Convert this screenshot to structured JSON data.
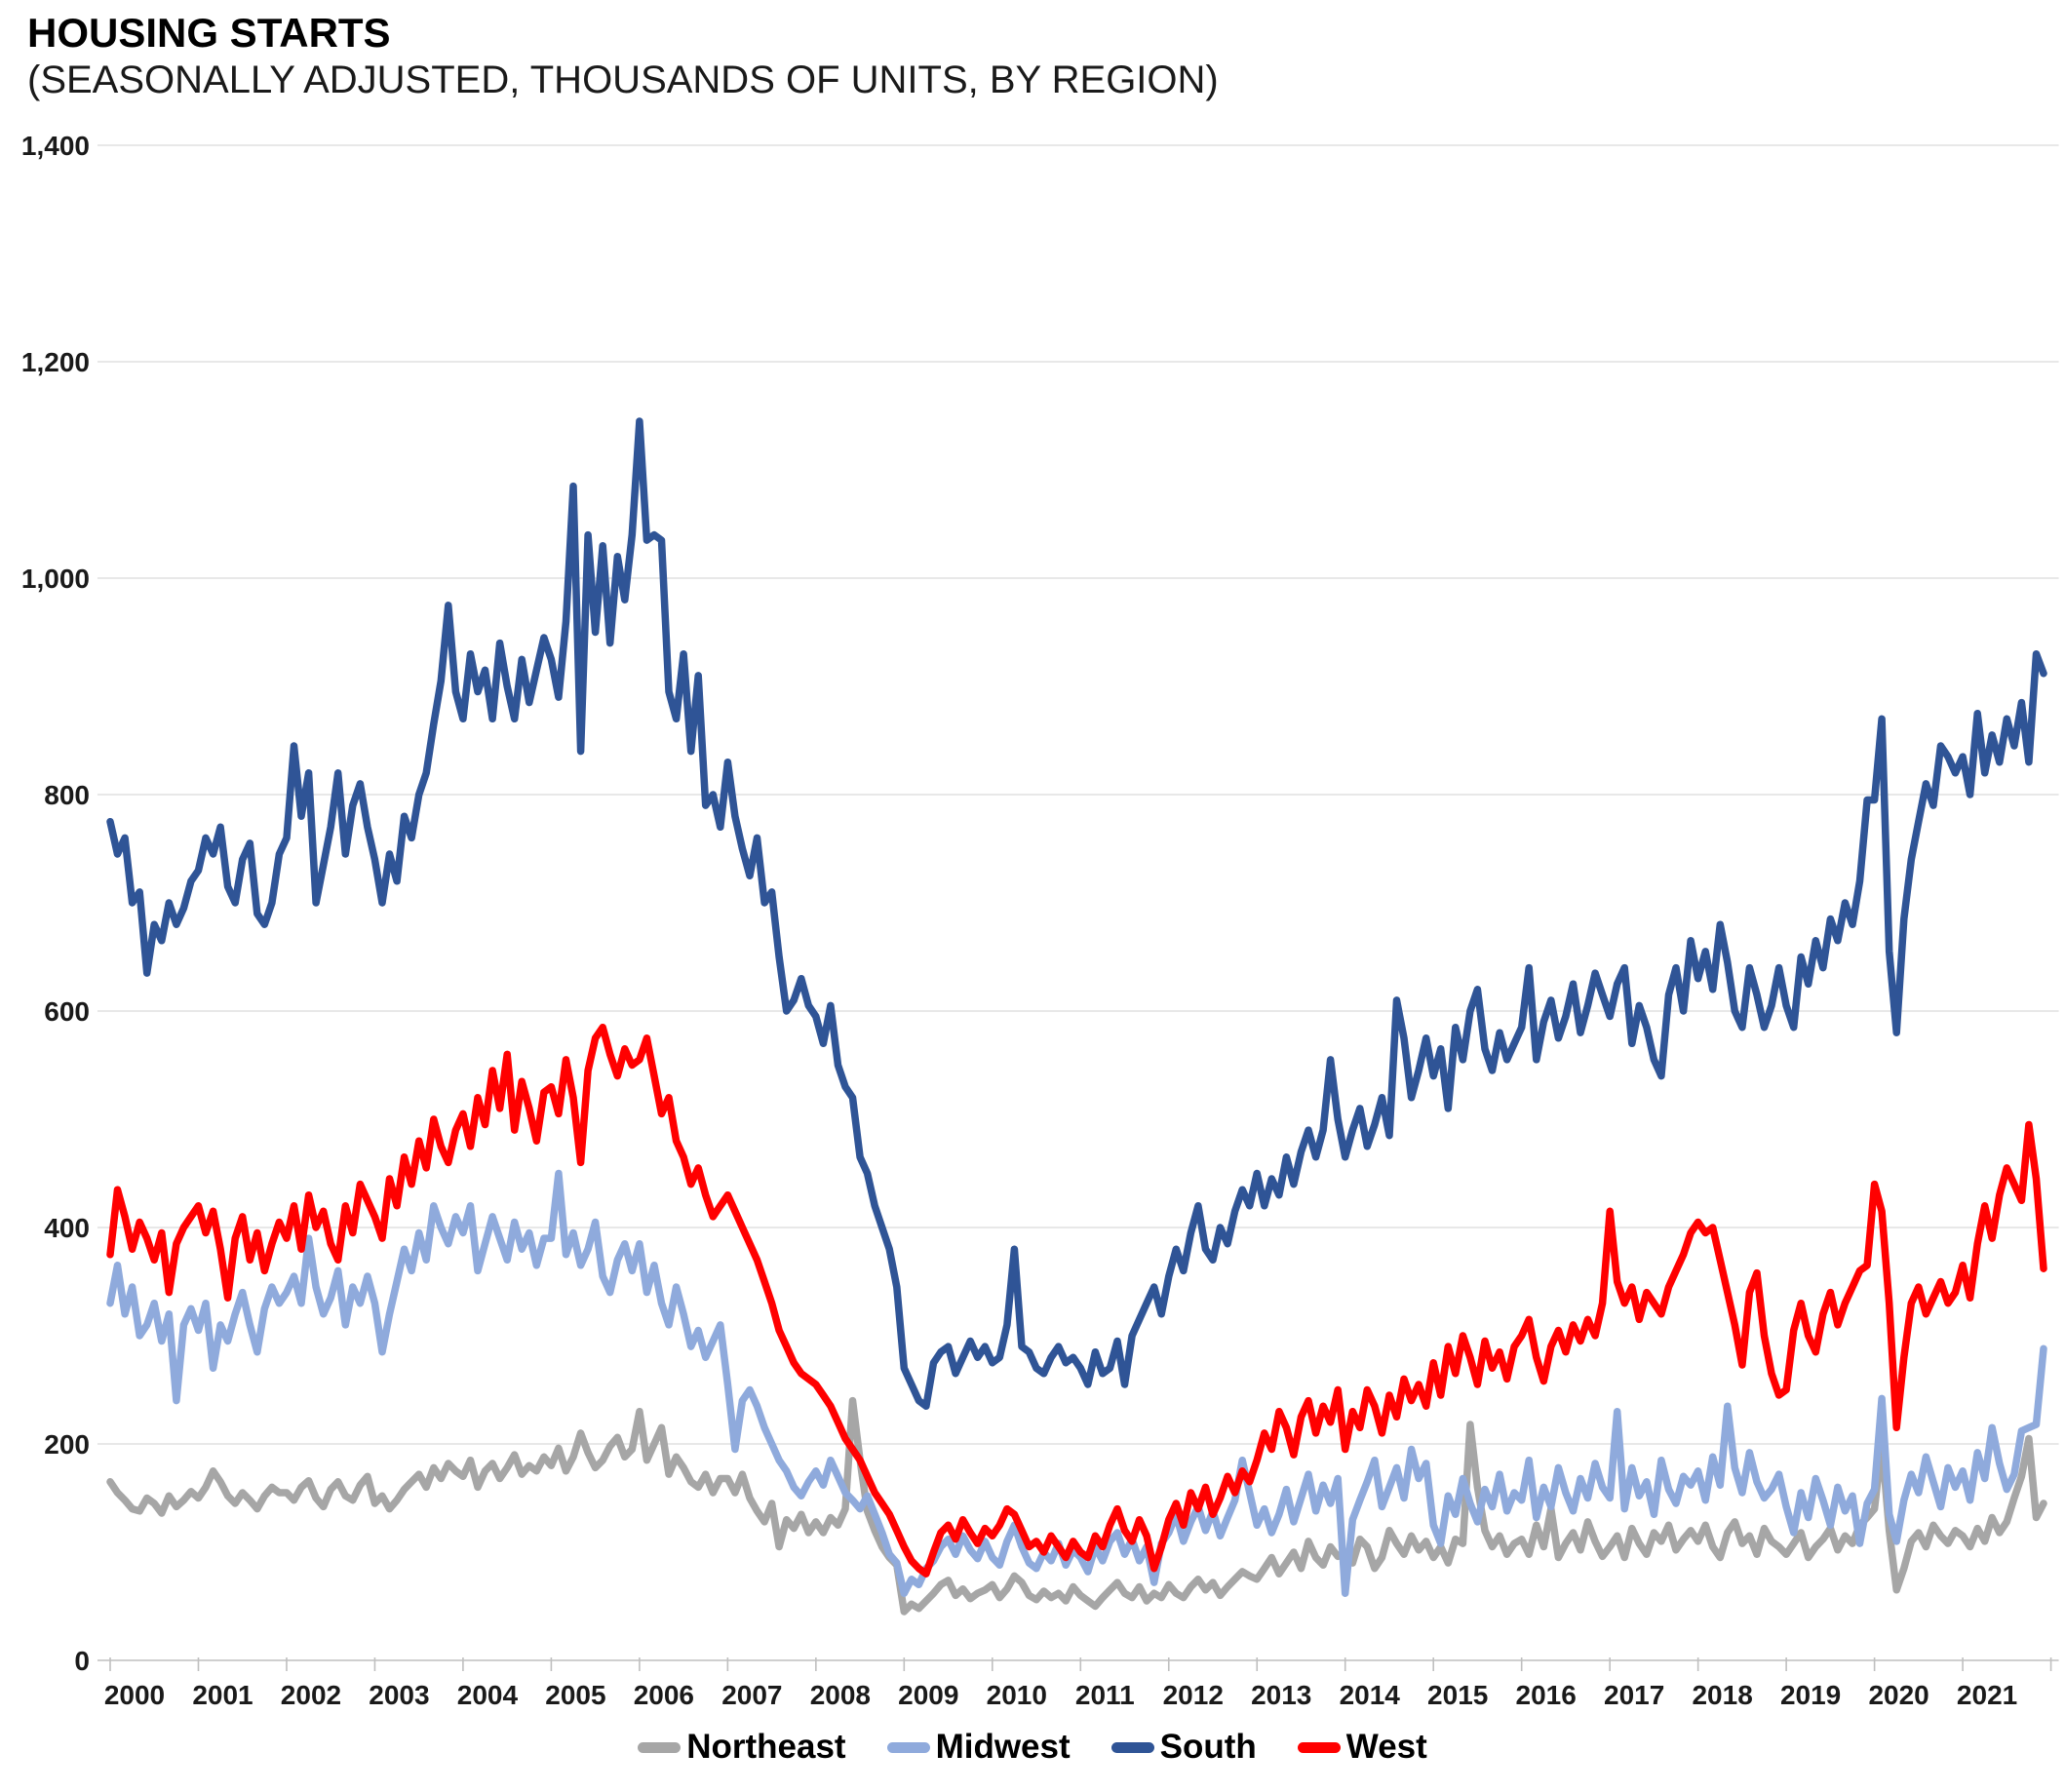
{
  "header": {},
  "chart_data": {
    "type": "line",
    "title": "HOUSING STARTS",
    "subtitle": "(SEASONALLY ADJUSTED, THOUSANDS OF UNITS, BY REGION)",
    "x_unit": "month",
    "x_start": "2000-01",
    "x_end": "2021-12",
    "x_tick_labels": [
      "2000",
      "2001",
      "2002",
      "2003",
      "2004",
      "2005",
      "2006",
      "2007",
      "2008",
      "2009",
      "2010",
      "2011",
      "2012",
      "2013",
      "2014",
      "2015",
      "2016",
      "2017",
      "2018",
      "2019",
      "2020",
      "2021"
    ],
    "ylim": [
      0,
      1400
    ],
    "y_ticks": [
      0,
      200,
      400,
      600,
      800,
      1000,
      1200,
      1400
    ],
    "y_tick_labels": [
      "0",
      "200",
      "400",
      "600",
      "800",
      "1,000",
      "1,200",
      "1,400"
    ],
    "grid": "horizontal",
    "gridline_color": "#D9D9D9",
    "axis_color": "#BFBFBF",
    "legend_position": "bottom",
    "series": [
      {
        "name": "Northeast",
        "color": "#A6A6A6",
        "values": [
          165,
          155,
          148,
          140,
          138,
          150,
          145,
          136,
          152,
          142,
          148,
          156,
          150,
          160,
          175,
          165,
          152,
          145,
          155,
          148,
          140,
          152,
          160,
          155,
          155,
          148,
          160,
          166,
          150,
          142,
          158,
          165,
          152,
          148,
          162,
          170,
          145,
          152,
          140,
          148,
          158,
          165,
          172,
          160,
          178,
          168,
          182,
          175,
          170,
          185,
          160,
          175,
          182,
          168,
          178,
          190,
          172,
          180,
          175,
          188,
          180,
          196,
          175,
          188,
          210,
          192,
          178,
          185,
          198,
          206,
          188,
          195,
          230,
          185,
          200,
          215,
          172,
          188,
          178,
          165,
          160,
          172,
          155,
          168,
          168,
          155,
          172,
          150,
          138,
          128,
          145,
          105,
          130,
          122,
          135,
          118,
          128,
          118,
          132,
          125,
          140,
          240,
          185,
          138,
          120,
          105,
          95,
          88,
          45,
          52,
          48,
          55,
          62,
          70,
          74,
          60,
          66,
          57,
          62,
          65,
          70,
          58,
          66,
          78,
          72,
          60,
          56,
          64,
          58,
          62,
          55,
          68,
          60,
          55,
          50,
          58,
          65,
          72,
          62,
          58,
          68,
          55,
          62,
          58,
          70,
          62,
          58,
          68,
          75,
          65,
          72,
          60,
          68,
          75,
          82,
          78,
          75,
          85,
          95,
          80,
          90,
          100,
          85,
          110,
          95,
          88,
          105,
          96,
          100,
          90,
          112,
          105,
          85,
          95,
          120,
          108,
          98,
          115,
          102,
          110,
          95,
          105,
          90,
          112,
          108,
          218,
          160,
          120,
          105,
          115,
          98,
          108,
          112,
          98,
          125,
          105,
          140,
          95,
          108,
          118,
          102,
          128,
          110,
          96,
          105,
          115,
          95,
          122,
          108,
          98,
          118,
          110,
          125,
          102,
          112,
          120,
          110,
          125,
          105,
          95,
          118,
          128,
          108,
          115,
          98,
          122,
          110,
          105,
          98,
          108,
          118,
          95,
          105,
          112,
          122,
          102,
          115,
          108,
          125,
          132,
          140,
          200,
          120,
          65,
          85,
          110,
          118,
          105,
          125,
          115,
          108,
          120,
          115,
          105,
          122,
          110,
          132,
          118,
          128,
          150,
          170,
          205,
          132,
          145
        ]
      },
      {
        "name": "Midwest",
        "color": "#8FAADC",
        "values": [
          330,
          365,
          320,
          345,
          300,
          310,
          330,
          295,
          320,
          240,
          310,
          325,
          305,
          330,
          270,
          310,
          295,
          320,
          340,
          310,
          285,
          325,
          345,
          330,
          340,
          355,
          330,
          390,
          345,
          320,
          335,
          360,
          310,
          345,
          330,
          355,
          330,
          285,
          320,
          350,
          380,
          360,
          395,
          370,
          420,
          400,
          385,
          410,
          395,
          420,
          360,
          385,
          410,
          390,
          370,
          405,
          380,
          395,
          365,
          390,
          390,
          450,
          375,
          395,
          365,
          380,
          405,
          355,
          340,
          370,
          385,
          360,
          385,
          340,
          365,
          330,
          310,
          345,
          320,
          290,
          305,
          280,
          295,
          310,
          255,
          195,
          240,
          250,
          235,
          215,
          200,
          185,
          175,
          160,
          152,
          165,
          175,
          162,
          185,
          170,
          155,
          148,
          140,
          152,
          135,
          118,
          98,
          90,
          62,
          75,
          70,
          85,
          92,
          105,
          112,
          98,
          115,
          102,
          94,
          110,
          95,
          88,
          110,
          125,
          105,
          90,
          85,
          100,
          92,
          108,
          88,
          102,
          95,
          82,
          105,
          92,
          110,
          118,
          98,
          112,
          92,
          105,
          72,
          108,
          118,
          135,
          110,
          128,
          142,
          120,
          138,
          115,
          132,
          148,
          185,
          155,
          125,
          140,
          118,
          135,
          158,
          128,
          150,
          172,
          138,
          162,
          145,
          168,
          62,
          130,
          148,
          165,
          185,
          142,
          160,
          178,
          150,
          195,
          168,
          182,
          125,
          108,
          152,
          135,
          168,
          145,
          128,
          158,
          142,
          172,
          138,
          155,
          148,
          185,
          132,
          160,
          142,
          178,
          155,
          138,
          168,
          150,
          182,
          160,
          150,
          230,
          140,
          178,
          152,
          165,
          135,
          185,
          158,
          145,
          170,
          162,
          175,
          148,
          188,
          162,
          235,
          178,
          155,
          192,
          165,
          150,
          158,
          172,
          142,
          118,
          155,
          132,
          168,
          148,
          125,
          160,
          138,
          152,
          108,
          145,
          158,
          242,
          135,
          110,
          148,
          172,
          155,
          188,
          165,
          142,
          178,
          160,
          175,
          148,
          192,
          168,
          215,
          182,
          158,
          172,
          212,
          215,
          218,
          288
        ]
      },
      {
        "name": "South",
        "color": "#2F5496",
        "values": [
          775,
          745,
          760,
          700,
          710,
          635,
          680,
          665,
          700,
          680,
          695,
          720,
          730,
          760,
          745,
          770,
          715,
          700,
          740,
          755,
          690,
          680,
          700,
          745,
          760,
          845,
          780,
          820,
          700,
          735,
          770,
          820,
          745,
          790,
          810,
          770,
          740,
          700,
          745,
          720,
          780,
          760,
          800,
          820,
          865,
          905,
          975,
          895,
          870,
          930,
          895,
          915,
          870,
          940,
          900,
          870,
          925,
          885,
          915,
          945,
          925,
          890,
          960,
          1085,
          840,
          1040,
          950,
          1030,
          940,
          1020,
          980,
          1040,
          1145,
          1035,
          1040,
          1035,
          895,
          870,
          930,
          840,
          910,
          790,
          800,
          770,
          830,
          780,
          750,
          725,
          760,
          700,
          710,
          650,
          600,
          610,
          630,
          605,
          595,
          570,
          605,
          550,
          530,
          520,
          465,
          450,
          420,
          400,
          380,
          345,
          270,
          255,
          240,
          235,
          275,
          285,
          290,
          265,
          280,
          295,
          280,
          290,
          275,
          280,
          310,
          380,
          290,
          285,
          270,
          265,
          280,
          290,
          275,
          280,
          270,
          255,
          285,
          265,
          270,
          295,
          255,
          300,
          315,
          330,
          345,
          320,
          355,
          380,
          360,
          395,
          420,
          380,
          370,
          400,
          385,
          415,
          435,
          420,
          450,
          420,
          445,
          430,
          465,
          440,
          470,
          490,
          465,
          490,
          555,
          500,
          465,
          490,
          510,
          475,
          495,
          520,
          485,
          610,
          575,
          520,
          545,
          575,
          540,
          565,
          510,
          585,
          555,
          600,
          620,
          565,
          545,
          580,
          555,
          570,
          585,
          640,
          555,
          590,
          610,
          575,
          595,
          625,
          580,
          605,
          635,
          615,
          595,
          625,
          640,
          570,
          605,
          585,
          555,
          540,
          615,
          640,
          600,
          665,
          630,
          655,
          620,
          680,
          645,
          600,
          585,
          640,
          615,
          585,
          605,
          640,
          605,
          585,
          650,
          625,
          665,
          640,
          685,
          665,
          700,
          680,
          720,
          795,
          795,
          870,
          655,
          580,
          685,
          740,
          775,
          810,
          790,
          845,
          835,
          820,
          835,
          800,
          875,
          820,
          855,
          830,
          870,
          845,
          885,
          830,
          930,
          912
        ]
      },
      {
        "name": "West",
        "color": "#FF0000",
        "values": [
          375,
          435,
          410,
          380,
          405,
          390,
          370,
          395,
          340,
          385,
          400,
          410,
          420,
          395,
          415,
          380,
          335,
          390,
          410,
          370,
          395,
          360,
          385,
          405,
          390,
          420,
          380,
          430,
          400,
          415,
          385,
          370,
          420,
          395,
          440,
          425,
          410,
          390,
          445,
          420,
          465,
          440,
          480,
          455,
          500,
          475,
          460,
          490,
          505,
          475,
          520,
          495,
          545,
          510,
          560,
          490,
          535,
          510,
          480,
          525,
          530,
          505,
          555,
          520,
          460,
          545,
          575,
          585,
          560,
          540,
          565,
          550,
          555,
          575,
          540,
          505,
          520,
          480,
          465,
          440,
          455,
          430,
          410,
          420,
          430,
          415,
          400,
          385,
          370,
          350,
          330,
          305,
          290,
          275,
          265,
          260,
          255,
          245,
          235,
          220,
          205,
          195,
          185,
          170,
          155,
          145,
          135,
          120,
          105,
          92,
          85,
          80,
          100,
          118,
          125,
          112,
          130,
          118,
          108,
          122,
          115,
          125,
          140,
          135,
          120,
          105,
          110,
          100,
          115,
          105,
          95,
          110,
          100,
          95,
          115,
          105,
          125,
          140,
          120,
          110,
          130,
          115,
          85,
          105,
          130,
          145,
          125,
          155,
          140,
          160,
          135,
          150,
          170,
          155,
          175,
          165,
          185,
          210,
          195,
          230,
          215,
          190,
          225,
          240,
          210,
          235,
          220,
          250,
          195,
          230,
          215,
          250,
          235,
          210,
          245,
          225,
          260,
          240,
          255,
          235,
          275,
          245,
          290,
          265,
          300,
          280,
          255,
          295,
          270,
          285,
          260,
          290,
          300,
          315,
          280,
          258,
          290,
          305,
          285,
          310,
          295,
          315,
          300,
          330,
          415,
          350,
          330,
          345,
          315,
          340,
          330,
          320,
          345,
          360,
          375,
          395,
          405,
          395,
          400,
          370,
          340,
          310,
          273,
          340,
          358,
          300,
          265,
          245,
          250,
          305,
          330,
          300,
          285,
          320,
          340,
          310,
          330,
          345,
          360,
          365,
          440,
          415,
          330,
          215,
          280,
          330,
          345,
          320,
          335,
          350,
          330,
          340,
          365,
          335,
          385,
          420,
          390,
          430,
          455,
          440,
          425,
          495,
          445,
          362
        ]
      }
    ]
  }
}
